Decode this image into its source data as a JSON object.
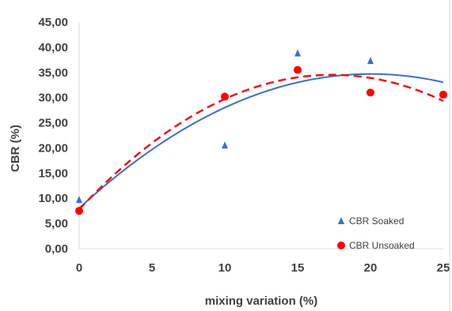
{
  "chart_data": {
    "type": "scatter",
    "xlabel": "mixing variation (%)",
    "ylabel": "CBR (%)",
    "xlim": [
      0,
      25
    ],
    "ylim": [
      0,
      45
    ],
    "x_ticks": [
      "0",
      "5",
      "10",
      "15",
      "20",
      "25"
    ],
    "y_ticks": [
      "0,00",
      "5,00",
      "10,00",
      "15,00",
      "20,00",
      "25,00",
      "30,00",
      "35,00",
      "40,00",
      "45,00"
    ],
    "grid": false,
    "legend_position": "bottom-right",
    "series": [
      {
        "name": "CBR Soaked",
        "marker": "triangle",
        "color": "#3a6fc4",
        "trendline": "polynomial",
        "trend_style": "solid",
        "trend_color": "#3a6fc4",
        "x": [
          0,
          10,
          15,
          20,
          25
        ],
        "y": [
          9.7,
          20.5,
          38.8,
          37.3,
          30.5
        ]
      },
      {
        "name": "CBR Unsoaked",
        "marker": "circle",
        "color": "#ff0000",
        "trendline": "polynomial",
        "trend_style": "dashed",
        "trend_color": "#e8141b",
        "x": [
          0,
          10,
          15,
          20,
          25
        ],
        "y": [
          7.5,
          30.2,
          35.5,
          31.0,
          30.6
        ]
      }
    ]
  }
}
